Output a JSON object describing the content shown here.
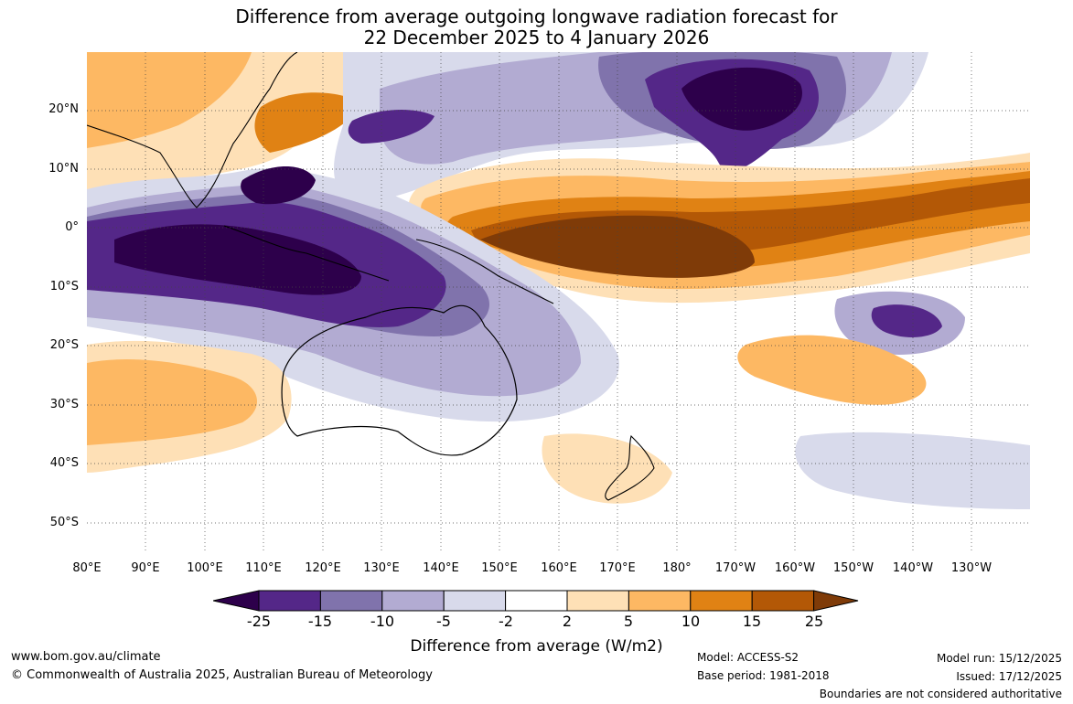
{
  "title": {
    "line1": "Difference from average outgoing longwave radiation forecast for",
    "line2": "22 December 2025 to 4 January 2026"
  },
  "latitude_labels": [
    "20°N",
    "10°N",
    "0°",
    "10°S",
    "20°S",
    "30°S",
    "40°S",
    "50°S"
  ],
  "longitude_labels": [
    "80°E",
    "90°E",
    "100°E",
    "110°E",
    "120°E",
    "130°E",
    "140°E",
    "150°E",
    "160°E",
    "170°E",
    "180°",
    "170°W",
    "160°W",
    "150°W",
    "140°W",
    "130°W"
  ],
  "legend": {
    "label": "Difference from average (W/m2)",
    "ticks": [
      "-25",
      "-15",
      "-10",
      "-5",
      "-2",
      "2",
      "5",
      "10",
      "15",
      "25"
    ],
    "colors": [
      "#2d004b",
      "#542788",
      "#8073ac",
      "#b2abd2",
      "#d8daeb",
      "#ffffff",
      "#fee0b6",
      "#fdb863",
      "#e08214",
      "#b35806",
      "#7f3b08"
    ]
  },
  "footer": {
    "website": "www.bom.gov.au/climate",
    "copyright": "© Commonwealth of Australia 2025, Australian Bureau of Meteorology",
    "model": "Model: ACCESS-S2",
    "base_period": "Base period: 1981-2018",
    "model_run": "Model run: 15/12/2025",
    "issued": "Issued: 17/12/2025",
    "disclaimer": "Boundaries are not considered authoritative"
  }
}
